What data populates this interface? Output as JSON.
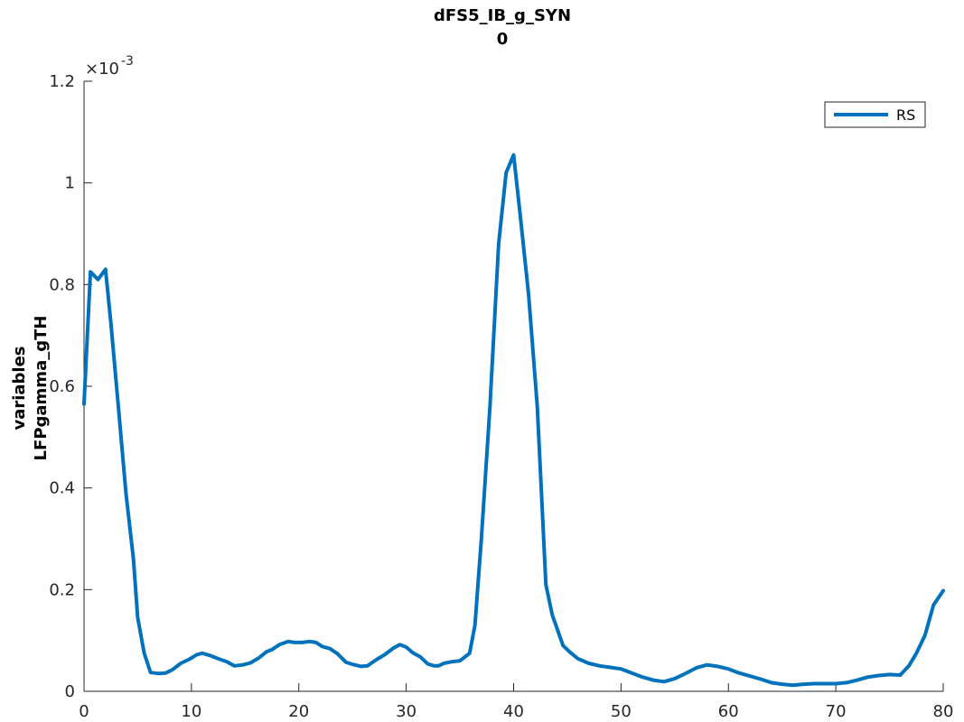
{
  "chart_data": {
    "type": "line",
    "title": [
      "dFS5_IB_g_SYN",
      "0"
    ],
    "xlabel": "",
    "ylabel": [
      "variables",
      "LFPgamma_gTH"
    ],
    "xlim": [
      0,
      80
    ],
    "ylim": [
      0,
      0.0012
    ],
    "y_exponent_label": "×10",
    "y_exponent_power": "-3",
    "xticks": [
      0,
      10,
      20,
      30,
      40,
      50,
      60,
      70,
      80
    ],
    "xtick_labels": [
      "0",
      "10",
      "20",
      "30",
      "40",
      "50",
      "60",
      "70",
      "80"
    ],
    "yticks": [
      0,
      0.0002,
      0.0004,
      0.0006,
      0.0008,
      0.001,
      0.0012
    ],
    "ytick_labels": [
      "0",
      "0.2",
      "0.4",
      "0.6",
      "0.8",
      "1",
      "1.2"
    ],
    "grid": false,
    "legend_position": "top-right",
    "series": [
      {
        "name": "RS",
        "color": "#0072BD",
        "points": [
          [
            0,
            0.000565
          ],
          [
            0.6,
            0.000825
          ],
          [
            1.3,
            0.00081
          ],
          [
            2.0,
            0.00083
          ],
          [
            2.5,
            0.000725
          ],
          [
            3.2,
            0.00056
          ],
          [
            3.9,
            0.00039
          ],
          [
            4.6,
            0.00026
          ],
          [
            5.0,
            0.000145
          ],
          [
            5.6,
            7.5e-05
          ],
          [
            6.2,
            3.7e-05
          ],
          [
            7.0,
            3.5e-05
          ],
          [
            7.6,
            3.6e-05
          ],
          [
            8.2,
            4.2e-05
          ],
          [
            9.0,
            5.5e-05
          ],
          [
            9.8,
            6.3e-05
          ],
          [
            10.5,
            7.2e-05
          ],
          [
            11.0,
            7.5e-05
          ],
          [
            11.8,
            7e-05
          ],
          [
            12.5,
            6.4e-05
          ],
          [
            13.3,
            5.8e-05
          ],
          [
            14.0,
            5e-05
          ],
          [
            14.8,
            5.2e-05
          ],
          [
            15.5,
            5.6e-05
          ],
          [
            16.3,
            6.6e-05
          ],
          [
            17.0,
            7.8e-05
          ],
          [
            17.5,
            8.2e-05
          ],
          [
            18.2,
            9.2e-05
          ],
          [
            19.0,
            9.8e-05
          ],
          [
            19.6,
            9.6e-05
          ],
          [
            20.3,
            9.6e-05
          ],
          [
            21.0,
            9.8e-05
          ],
          [
            21.6,
            9.6e-05
          ],
          [
            22.2,
            8.8e-05
          ],
          [
            22.9,
            8.4e-05
          ],
          [
            23.6,
            7.4e-05
          ],
          [
            24.4,
            5.7e-05
          ],
          [
            25.0,
            5.3e-05
          ],
          [
            25.8,
            4.9e-05
          ],
          [
            26.4,
            5e-05
          ],
          [
            27.2,
            6.2e-05
          ],
          [
            28.0,
            7.2e-05
          ],
          [
            28.8,
            8.5e-05
          ],
          [
            29.4,
            9.2e-05
          ],
          [
            30.0,
            8.7e-05
          ],
          [
            30.6,
            7.6e-05
          ],
          [
            31.3,
            6.8e-05
          ],
          [
            32.0,
            5.4e-05
          ],
          [
            32.6,
            5e-05
          ],
          [
            33.0,
            5e-05
          ],
          [
            33.5,
            5.5e-05
          ],
          [
            34.2,
            5.8e-05
          ],
          [
            35.0,
            6e-05
          ],
          [
            35.9,
            7.5e-05
          ],
          [
            36.4,
            0.00013
          ],
          [
            37.0,
            0.0003
          ],
          [
            37.8,
            0.00056
          ],
          [
            38.6,
            0.00088
          ],
          [
            39.3,
            0.00102
          ],
          [
            40.0,
            0.001055
          ],
          [
            40.6,
            0.00094
          ],
          [
            41.4,
            0.00078
          ],
          [
            42.2,
            0.00056
          ],
          [
            43.0,
            0.00021
          ],
          [
            43.6,
            0.00015
          ],
          [
            44.6,
            9e-05
          ],
          [
            45.3,
            7.6e-05
          ],
          [
            46.0,
            6.4e-05
          ],
          [
            47.0,
            5.5e-05
          ],
          [
            48.0,
            5e-05
          ],
          [
            49.0,
            4.7e-05
          ],
          [
            50.0,
            4.4e-05
          ],
          [
            51.0,
            3.6e-05
          ],
          [
            52.0,
            2.8e-05
          ],
          [
            53.0,
            2.2e-05
          ],
          [
            54.0,
            1.9e-05
          ],
          [
            55.0,
            2.5e-05
          ],
          [
            56.0,
            3.5e-05
          ],
          [
            57.0,
            4.6e-05
          ],
          [
            58.0,
            5.2e-05
          ],
          [
            59.0,
            4.9e-05
          ],
          [
            60.0,
            4.4e-05
          ],
          [
            61.0,
            3.6e-05
          ],
          [
            62.0,
            3e-05
          ],
          [
            63.0,
            2.4e-05
          ],
          [
            64.0,
            1.7e-05
          ],
          [
            65.0,
            1.4e-05
          ],
          [
            66.0,
            1.2e-05
          ],
          [
            67.0,
            1.4e-05
          ],
          [
            68.0,
            1.5e-05
          ],
          [
            69.0,
            1.5e-05
          ],
          [
            70.0,
            1.5e-05
          ],
          [
            71.0,
            1.7e-05
          ],
          [
            72.0,
            2.2e-05
          ],
          [
            73.0,
            2.8e-05
          ],
          [
            74.0,
            3.1e-05
          ],
          [
            75.0,
            3.3e-05
          ],
          [
            76.0,
            3.2e-05
          ],
          [
            76.8,
            5e-05
          ],
          [
            77.5,
            7.5e-05
          ],
          [
            78.3,
            0.00011
          ],
          [
            79.1,
            0.00017
          ],
          [
            80.0,
            0.000198
          ]
        ]
      }
    ]
  }
}
